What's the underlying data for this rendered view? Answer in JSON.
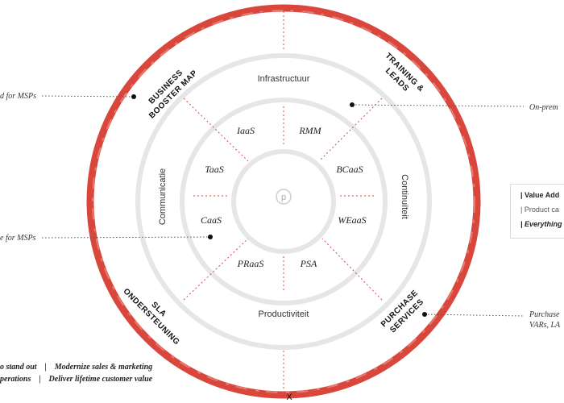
{
  "center_logo": "p",
  "rings": {
    "middle_labels": [
      "Infrastructuur",
      "Continuïteit",
      "Productiviteit",
      "Communicatie"
    ],
    "inner_labels": [
      "IaaS",
      "RMM",
      "BCaaS",
      "WEaaS",
      "PSA",
      "PRaaS",
      "CaaS",
      "TaaS"
    ],
    "outer_labels": [
      {
        "lines": [
          "BUSINESS",
          "BOOSTER MAP"
        ]
      },
      {
        "lines": [
          "TRAINING &",
          "LEADS"
        ]
      },
      {
        "lines": [
          "PURCHASE",
          "SERVICES"
        ]
      },
      {
        "lines": [
          "SLA",
          "ONDERSTEUNING"
        ]
      }
    ]
  },
  "callouts": {
    "top_left": "d for MSPs",
    "mid_left": "e for MSPs",
    "top_right": "On-prem",
    "bottom_right_1": "Purchase",
    "bottom_right_2": "VARs, LA"
  },
  "side_box": {
    "line1": "| Value Add",
    "line2": "| Product ca",
    "line3": "| Everything"
  },
  "bottom_text": {
    "line1": "o stand out    |    Modernize sales & marketing",
    "line2": "perations    |    Deliver lifetime customer value"
  },
  "bottom_marker": "X",
  "colors": {
    "accent_red": "#d9473c",
    "ring_gray": "#e6e6e6",
    "text": "#222222"
  }
}
